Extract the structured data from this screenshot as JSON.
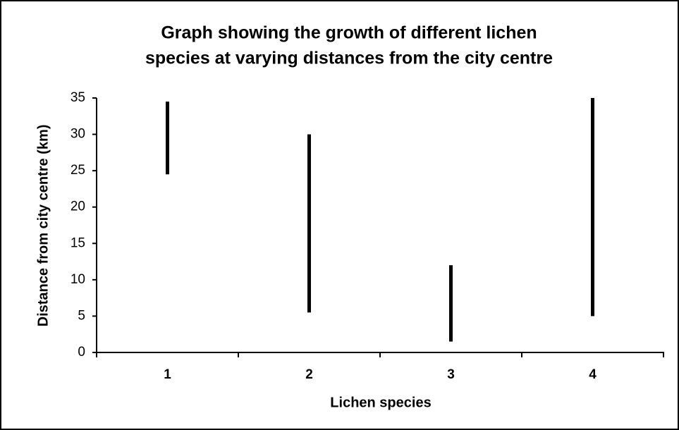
{
  "chart_data": {
    "type": "range",
    "title": [
      "Graph showing the growth of different lichen",
      "species at varying distances from the city centre"
    ],
    "xlabel": "Lichen species",
    "ylabel": "Distance from city centre (km)",
    "categories": [
      "1",
      "2",
      "3",
      "4"
    ],
    "values": [
      [
        24.5,
        34.5
      ],
      [
        5.5,
        30
      ],
      [
        1.5,
        12
      ],
      [
        5,
        35
      ]
    ],
    "color": "#000000",
    "ylim": [
      0,
      35
    ],
    "yticks": [
      0,
      5,
      10,
      15,
      20,
      25,
      30,
      35
    ],
    "grid": false
  }
}
